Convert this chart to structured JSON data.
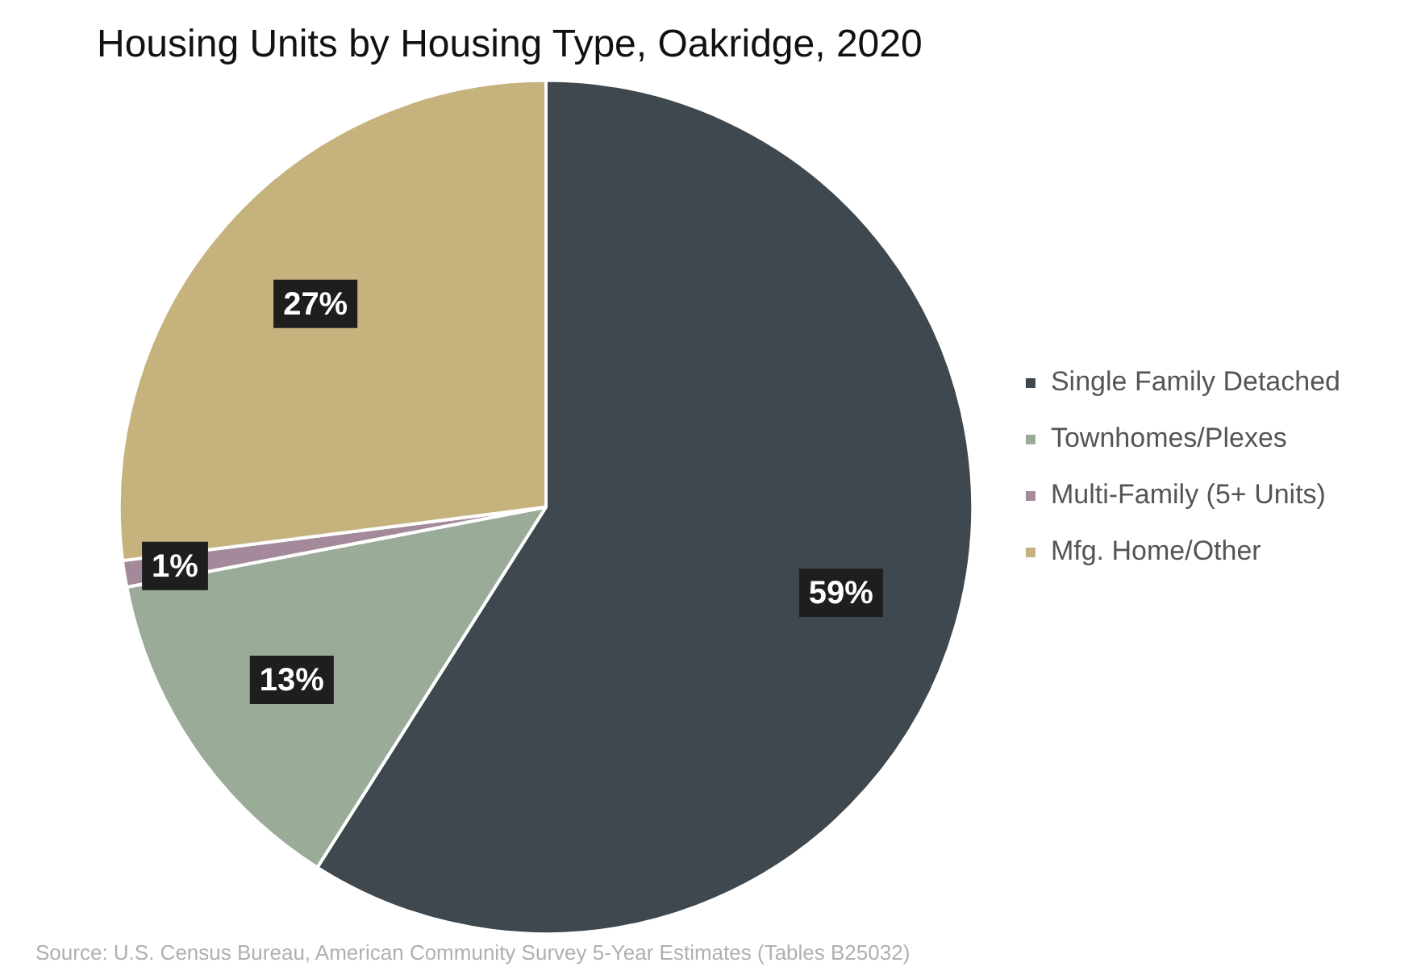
{
  "chart_data": {
    "type": "pie",
    "title": "Housing Units by Housing Type, Oakridge, 2020",
    "categories": [
      "Single Family Detached",
      "Townhomes/Plexes",
      "Multi-Family (5+ Units)",
      "Mfg. Home/Other"
    ],
    "values": [
      59,
      13,
      1,
      27
    ],
    "colors": [
      "#3e484e",
      "#9aab98",
      "#a3899a",
      "#c6b27c"
    ],
    "value_labels": [
      "59%",
      "13%",
      "1%",
      "27%"
    ],
    "legend": "right",
    "annotations": [
      "Source: U.S. Census Bureau, American Community Survey 5-Year Estimates (Tables B25032)"
    ]
  }
}
